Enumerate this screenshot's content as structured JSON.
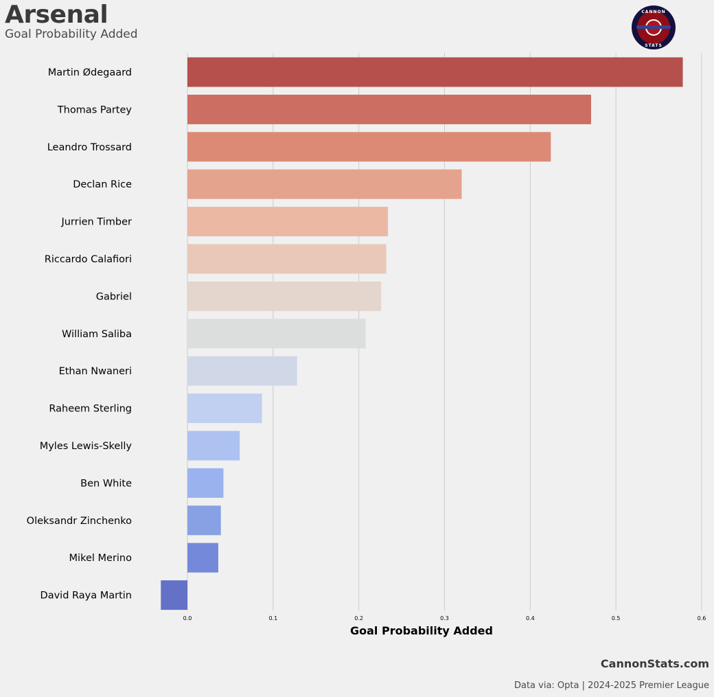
{
  "header": {
    "title": "Arsenal",
    "subtitle": "Goal Probability Added"
  },
  "logo": {
    "top_text": "CANNON",
    "bottom_text": "STATS",
    "colors": {
      "outer": "#14103f",
      "inner": "#8e0f17",
      "ring": "#ffffff",
      "accent": "#3b3f8f"
    }
  },
  "footer": {
    "brand": "CannonStats.com",
    "source": "Data via: Opta | 2024-2025 Premier League"
  },
  "chart_data": {
    "type": "bar",
    "orientation": "horizontal",
    "title": "",
    "xlabel": "Goal Probability Added",
    "ylabel": "",
    "xlim": [
      -0.031,
      0.6
    ],
    "xticks": [
      0.0,
      0.1,
      0.2,
      0.3,
      0.4,
      0.5,
      0.6
    ],
    "xtick_labels": [
      "0.0",
      "0.1",
      "0.2",
      "0.3",
      "0.4",
      "0.5",
      "0.6"
    ],
    "grid": true,
    "categories": [
      "Martin Ødegaard",
      "Thomas Partey",
      "Leandro Trossard",
      "Declan Rice",
      "Jurrien Timber",
      "Riccardo Calafiori",
      "Gabriel",
      "William Saliba",
      "Ethan Nwaneri",
      "Raheem Sterling",
      "Myles Lewis-Skelly",
      "Ben White",
      "Oleksandr Zinchenko",
      "Mikel Merino",
      "David Raya Martin"
    ],
    "values": [
      0.578,
      0.471,
      0.424,
      0.32,
      0.234,
      0.232,
      0.226,
      0.208,
      0.128,
      0.087,
      0.061,
      0.042,
      0.039,
      0.036,
      -0.031
    ],
    "colors": [
      "#b5504d",
      "#cc6e61",
      "#dc8a76",
      "#e4a38c",
      "#ebb8a3",
      "#e9c8b8",
      "#e4d5cd",
      "#dcdddd",
      "#d0d8e8",
      "#c1d0f0",
      "#aec2f2",
      "#9ab2ee",
      "#88a0e4",
      "#7489da",
      "#6371c7"
    ]
  }
}
